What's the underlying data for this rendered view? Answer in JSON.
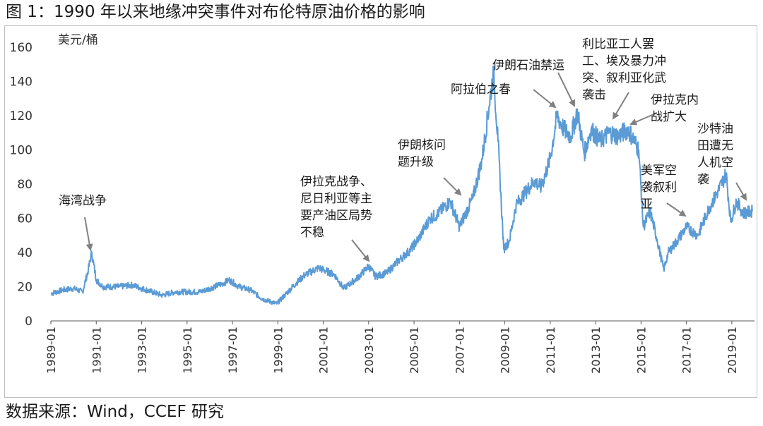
{
  "title": "图 1：1990 年以来地缘冲突事件对布伦特原油价格的影响",
  "source": "数据来源：Wind，CCEF 研究",
  "colors": {
    "line": "#5b9bd5",
    "axis": "#595959",
    "arrow": "#808080"
  },
  "chart_data": {
    "type": "line",
    "title": "图 1：1990 年以来地缘冲突事件对布伦特原油价格的影响",
    "ylabel": "美元/桶",
    "xlabel": "",
    "ylim": [
      0,
      160
    ],
    "xlim": [
      1989.0,
      2020.0
    ],
    "y_ticks": [
      0,
      20,
      40,
      60,
      80,
      100,
      120,
      140,
      160
    ],
    "x_ticks": [
      "1989-01",
      "1991-01",
      "1993-01",
      "1995-01",
      "1997-01",
      "1999-01",
      "2001-01",
      "2003-01",
      "2005-01",
      "2007-01",
      "2009-01",
      "2011-01",
      "2013-01",
      "2015-01",
      "2017-01",
      "2019-01"
    ],
    "grid": false,
    "series": [
      {
        "name": "布伦特原油价格",
        "x": [
          1989.0,
          1989.5,
          1990.0,
          1990.4,
          1990.65,
          1990.8,
          1991.0,
          1991.3,
          1992.0,
          1992.6,
          1993.0,
          1993.9,
          1994.5,
          1995.0,
          1995.6,
          1996.0,
          1996.6,
          1996.85,
          1997.3,
          1997.8,
          1998.3,
          1998.95,
          1999.3,
          1999.8,
          2000.2,
          2000.8,
          2001.5,
          2001.9,
          2002.5,
          2003.0,
          2003.3,
          2003.8,
          2004.3,
          2004.8,
          2005.2,
          2005.7,
          2006.0,
          2006.6,
          2007.0,
          2007.6,
          2008.0,
          2008.3,
          2008.5,
          2008.7,
          2008.95,
          2009.2,
          2009.5,
          2009.9,
          2010.3,
          2010.6,
          2011.0,
          2011.3,
          2011.6,
          2011.9,
          2012.2,
          2012.5,
          2012.8,
          2013.2,
          2013.6,
          2014.0,
          2014.4,
          2014.6,
          2014.9,
          2015.1,
          2015.4,
          2015.7,
          2016.0,
          2016.2,
          2016.6,
          2017.0,
          2017.5,
          2018.0,
          2018.4,
          2018.75,
          2018.95,
          2019.2,
          2019.5,
          2019.9
        ],
        "values": [
          16,
          18,
          19,
          17,
          30,
          40,
          24,
          20,
          20,
          21,
          19,
          15,
          17,
          17,
          17,
          19,
          22,
          24,
          20,
          18,
          13,
          10,
          15,
          22,
          27,
          31,
          27,
          19,
          25,
          32,
          26,
          28,
          35,
          41,
          48,
          60,
          62,
          70,
          55,
          72,
          95,
          125,
          145,
          105,
          42,
          47,
          68,
          75,
          82,
          78,
          95,
          120,
          112,
          108,
          122,
          98,
          112,
          105,
          110,
          108,
          112,
          108,
          100,
          55,
          64,
          48,
          30,
          40,
          47,
          55,
          50,
          66,
          76,
          86,
          58,
          70,
          63,
          64
        ]
      }
    ],
    "annotations": [
      {
        "lines": [
          "海湾战争"
        ]
      },
      {
        "lines": [
          "伊拉克战争、",
          "尼日利亚等主",
          "要产油区局势",
          "不稳"
        ]
      },
      {
        "lines": [
          "伊朗核问",
          "题升级"
        ]
      },
      {
        "lines": [
          "阿拉伯之春"
        ]
      },
      {
        "lines": [
          "伊朗石油禁运"
        ]
      },
      {
        "lines": [
          "利比亚工人罢",
          "工、埃及暴力冲",
          "突、叙利亚化武",
          "袭击"
        ]
      },
      {
        "lines": [
          "伊拉克内",
          "战扩大"
        ]
      },
      {
        "lines": [
          "美军空",
          "袭叙利",
          "亚"
        ]
      },
      {
        "lines": [
          "沙特油",
          "田遭无",
          "人机空",
          "袭"
        ]
      }
    ]
  }
}
